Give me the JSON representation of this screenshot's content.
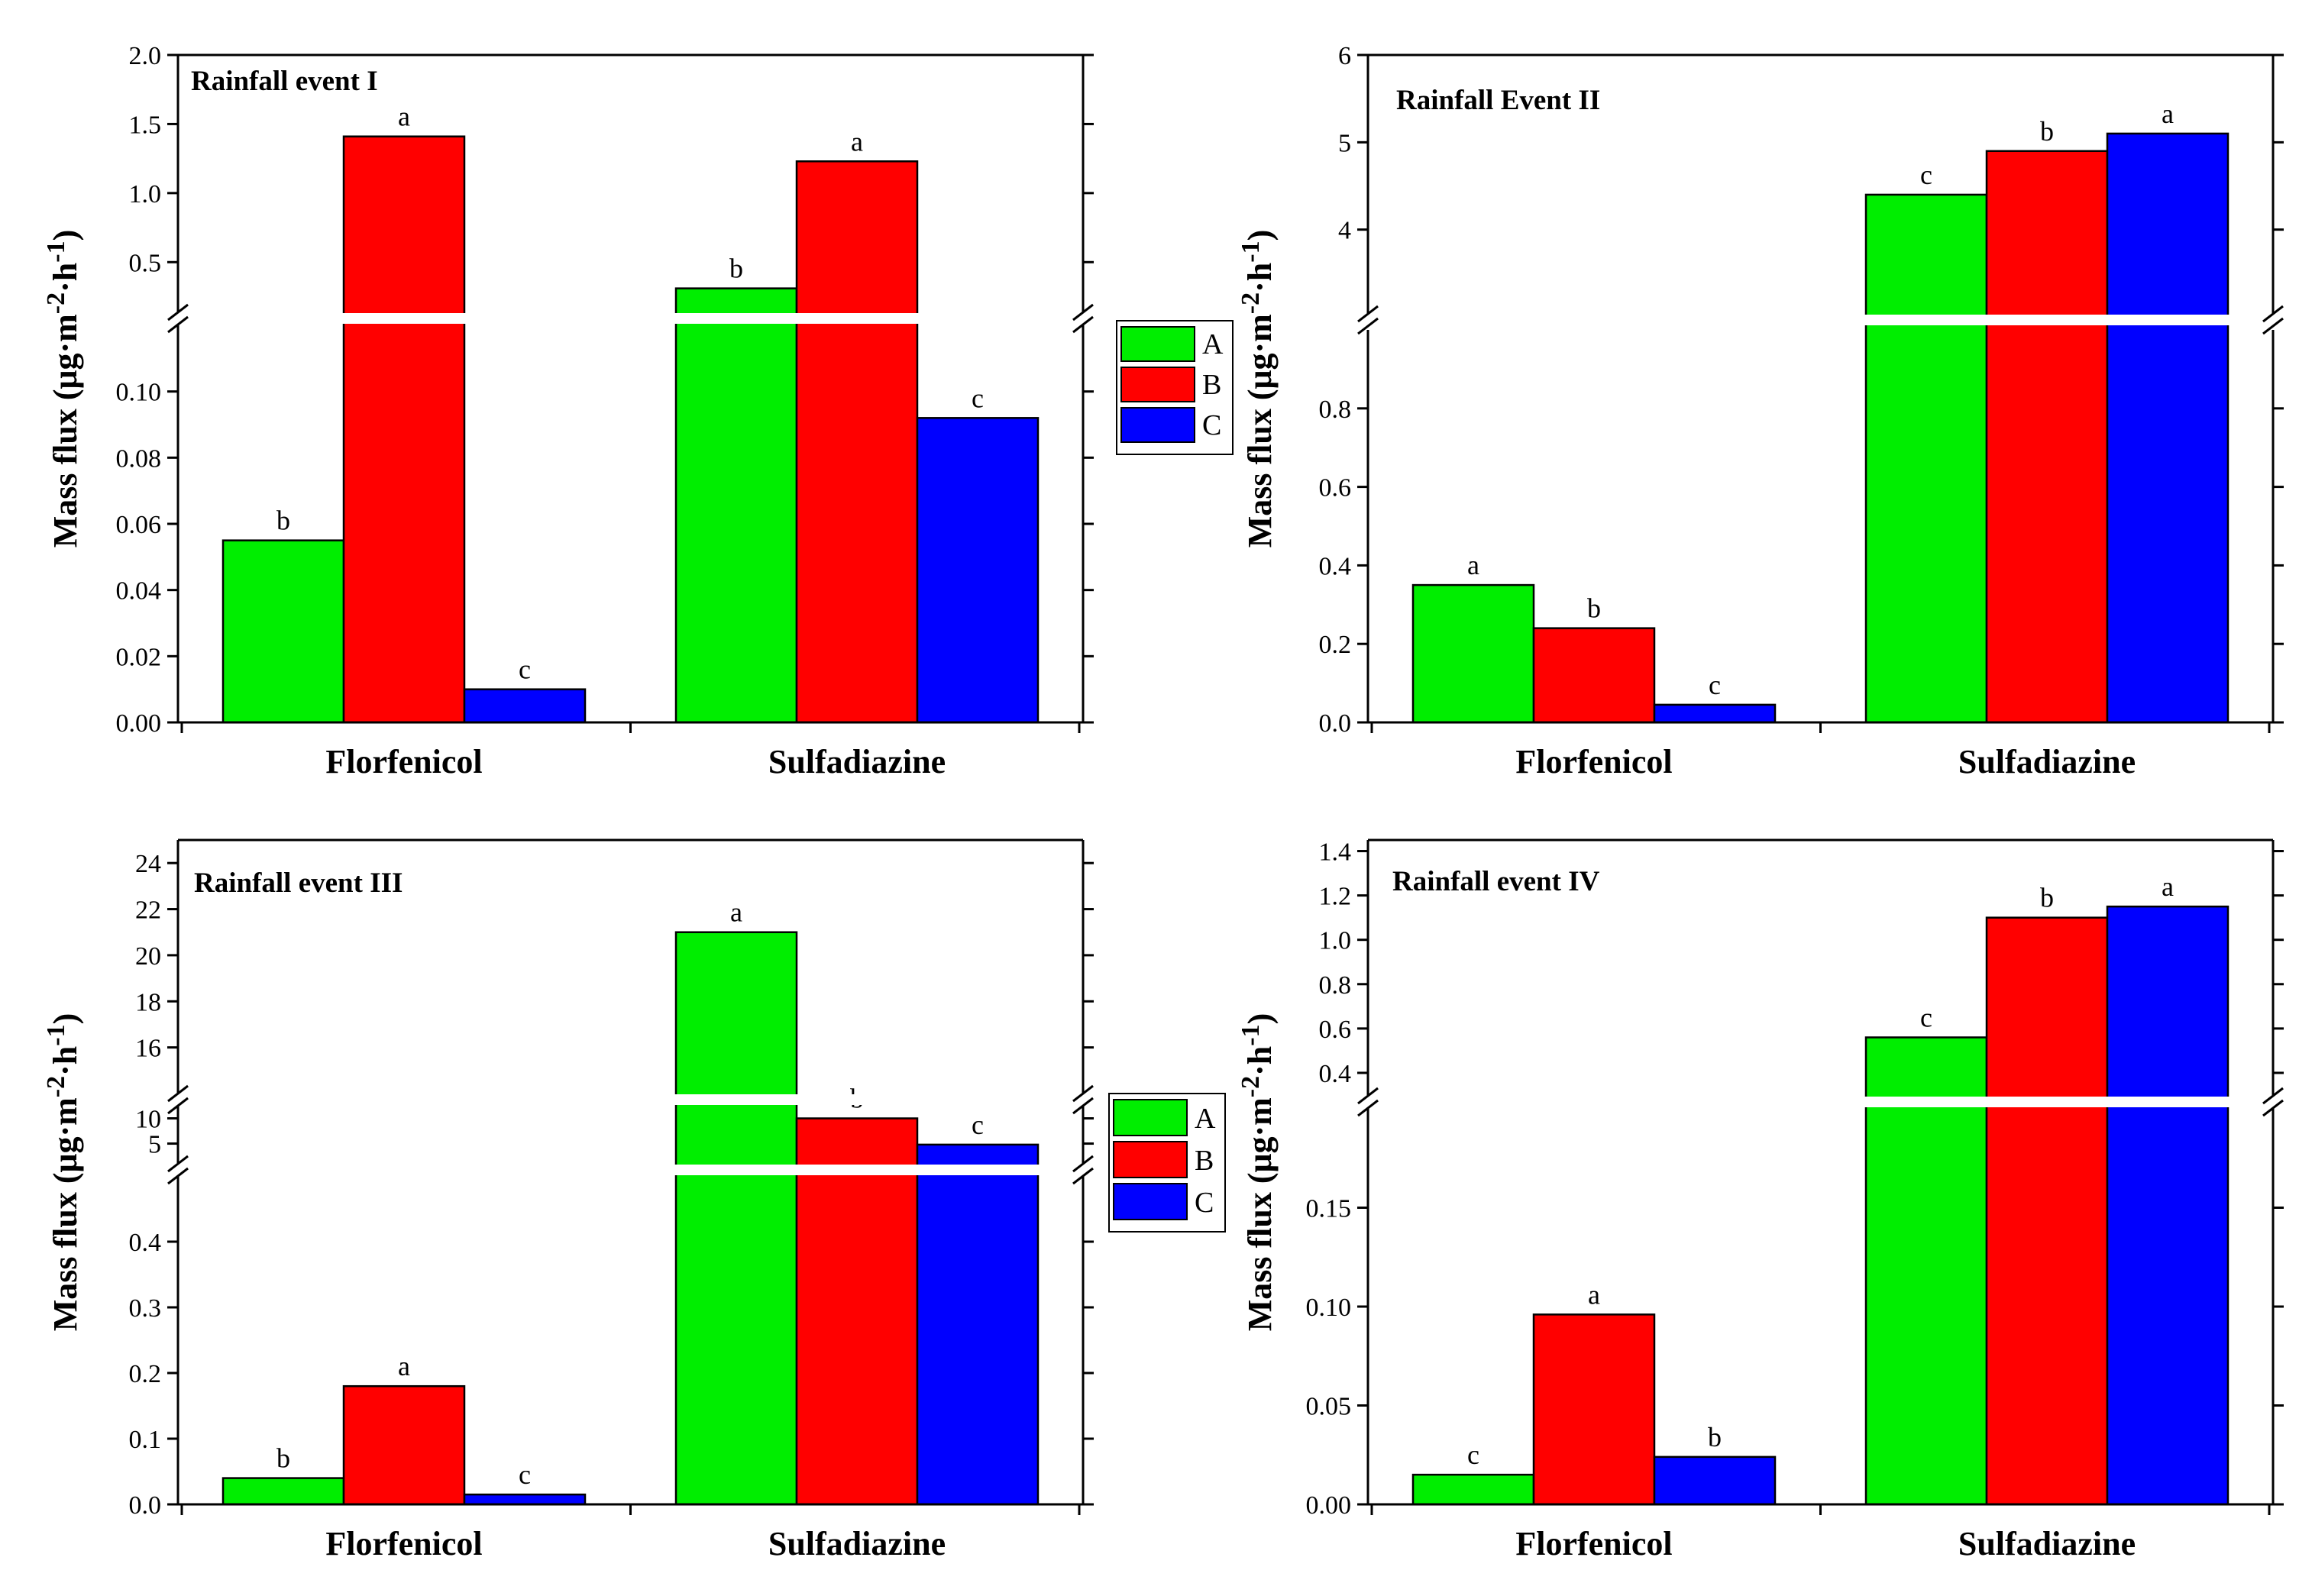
{
  "colors": {
    "A": "#00ee00",
    "B": "#ff0000",
    "C": "#0000ff"
  },
  "legend": {
    "entries": [
      "A",
      "B",
      "C"
    ]
  },
  "chart_data": [
    {
      "type": "bar",
      "title": "Rainfall event I",
      "ylabel_main": "Mass flux (μg·m",
      "ylabel_sup1": "-2",
      "ylabel_mid": "·h",
      "ylabel_sup2": "-1",
      "ylabel_end": ")",
      "categories": [
        "Florfenicol",
        "Sulfadiazine"
      ],
      "series": [
        {
          "name": "A",
          "values": [
            0.055,
            0.31
          ],
          "labels": [
            "b",
            "b"
          ]
        },
        {
          "name": "B",
          "values": [
            1.41,
            1.23
          ],
          "labels": [
            "a",
            "a"
          ]
        },
        {
          "name": "C",
          "values": [
            0.01,
            0.092
          ],
          "labels": [
            "c",
            "c"
          ]
        }
      ],
      "broken_axis": [
        {
          "range": [
            0,
            0.12
          ],
          "ticks": [
            0.0,
            0.02,
            0.04,
            0.06,
            0.08,
            0.1
          ],
          "tick_labels": [
            "0.00",
            "0.02",
            "0.04",
            "0.06",
            "0.08",
            "0.10"
          ]
        },
        {
          "range": [
            0.12,
            2.0
          ],
          "ticks": [
            0.5,
            1.0,
            1.5,
            2.0
          ],
          "tick_labels": [
            "0.5",
            "1.0",
            "1.5",
            "2.0"
          ]
        }
      ]
    },
    {
      "type": "bar",
      "title": "Rainfall Event II",
      "ylabel_main": "Mass flux (μg·m",
      "ylabel_sup1": "-2",
      "ylabel_mid": "·h",
      "ylabel_sup2": "-1",
      "ylabel_end": ")",
      "categories": [
        "Florfenicol",
        "Sulfadiazine"
      ],
      "series": [
        {
          "name": "A",
          "values": [
            0.35,
            4.4
          ],
          "labels": [
            "a",
            "c"
          ]
        },
        {
          "name": "B",
          "values": [
            0.24,
            4.9
          ],
          "labels": [
            "b",
            "b"
          ]
        },
        {
          "name": "C",
          "values": [
            0.045,
            5.1
          ],
          "labels": [
            "c",
            "a"
          ]
        }
      ],
      "broken_axis": [
        {
          "range": [
            0,
            1.0
          ],
          "ticks": [
            0.0,
            0.2,
            0.4,
            0.6,
            0.8
          ],
          "tick_labels": [
            "0.0",
            "0.2",
            "0.4",
            "0.6",
            "0.8"
          ]
        },
        {
          "range": [
            3.0,
            6.0
          ],
          "ticks": [
            4,
            5,
            6
          ],
          "tick_labels": [
            "4",
            "5",
            "6"
          ]
        }
      ]
    },
    {
      "type": "bar",
      "title": "Rainfall event III",
      "ylabel_main": "Mass flux (μg·m",
      "ylabel_sup1": "-2",
      "ylabel_mid": "·h",
      "ylabel_sup2": "-1",
      "ylabel_end": ")",
      "categories": [
        "Florfenicol",
        "Sulfadiazine"
      ],
      "series": [
        {
          "name": "A",
          "values": [
            0.04,
            21.0
          ],
          "labels": [
            "b",
            "a"
          ]
        },
        {
          "name": "B",
          "values": [
            0.18,
            10.0
          ],
          "labels": [
            "a",
            "b"
          ]
        },
        {
          "name": "C",
          "values": [
            0.015,
            4.8
          ],
          "labels": [
            "c",
            "c"
          ]
        }
      ],
      "broken_axis": [
        {
          "range": [
            0,
            0.5
          ],
          "ticks": [
            0.0,
            0.1,
            0.2,
            0.3,
            0.4
          ],
          "tick_labels": [
            "0.0",
            "0.1",
            "0.2",
            "0.3",
            "0.4"
          ]
        },
        {
          "range": [
            1.0,
            12.5
          ],
          "ticks": [
            5,
            10
          ],
          "tick_labels": [
            "5",
            "10"
          ]
        },
        {
          "range": [
            14.0,
            25.0
          ],
          "ticks": [
            16,
            18,
            20,
            22,
            24
          ],
          "tick_labels": [
            "16",
            "18",
            "20",
            "22",
            "24"
          ]
        }
      ]
    },
    {
      "type": "bar",
      "title": "Rainfall event IV",
      "ylabel_main": "Mass flux (μg·m",
      "ylabel_sup1": "-2",
      "ylabel_mid": "·h",
      "ylabel_sup2": "-1",
      "ylabel_end": ")",
      "categories": [
        "Florfenicol",
        "Sulfadiazine"
      ],
      "series": [
        {
          "name": "A",
          "values": [
            0.015,
            0.56
          ],
          "labels": [
            "c",
            "c"
          ]
        },
        {
          "name": "B",
          "values": [
            0.096,
            1.1
          ],
          "labels": [
            "a",
            "b"
          ]
        },
        {
          "name": "C",
          "values": [
            0.024,
            1.15
          ],
          "labels": [
            "b",
            "a"
          ]
        }
      ],
      "broken_axis": [
        {
          "range": [
            0,
            0.2
          ],
          "ticks": [
            0.0,
            0.05,
            0.1,
            0.15
          ],
          "tick_labels": [
            "0.00",
            "0.05",
            "0.10",
            "0.15"
          ]
        },
        {
          "range": [
            0.3,
            1.45
          ],
          "ticks": [
            0.4,
            0.6,
            0.8,
            1.0,
            1.2,
            1.4
          ],
          "tick_labels": [
            "0.4",
            "0.6",
            "0.8",
            "1.0",
            "1.2",
            "1.4"
          ]
        }
      ]
    }
  ]
}
